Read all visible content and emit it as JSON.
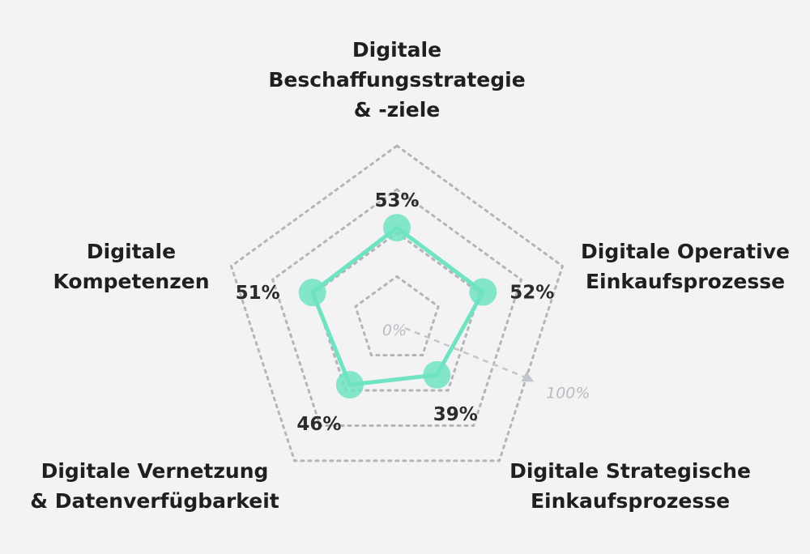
{
  "chart_data": {
    "type": "radar",
    "title": "",
    "axes": [
      {
        "label_lines": [
          "Digitale",
          "Beschaffungsstrategie",
          "& -ziele"
        ],
        "value": 53,
        "value_label": "53%"
      },
      {
        "label_lines": [
          "Digitale Operative",
          "Einkaufsprozesse"
        ],
        "value": 52,
        "value_label": "52%"
      },
      {
        "label_lines": [
          "Digitale Strategische",
          "Einkaufsprozesse"
        ],
        "value": 39,
        "value_label": "39%"
      },
      {
        "label_lines": [
          "Digitale Vernetzung",
          "& Datenverfügbarkeit"
        ],
        "value": 46,
        "value_label": "46%"
      },
      {
        "label_lines": [
          "Digitale",
          "Kompetenzen"
        ],
        "value": 51,
        "value_label": "51%"
      }
    ],
    "range": [
      0,
      100
    ],
    "grid_levels": [
      25,
      50,
      75,
      100
    ],
    "scale_min_label": "0%",
    "scale_max_label": "100%",
    "colors": {
      "series": "#6fe3c2",
      "grid": "#b3b5b9",
      "scale": "#c2c5cb",
      "background": "#f3f3f4"
    }
  }
}
